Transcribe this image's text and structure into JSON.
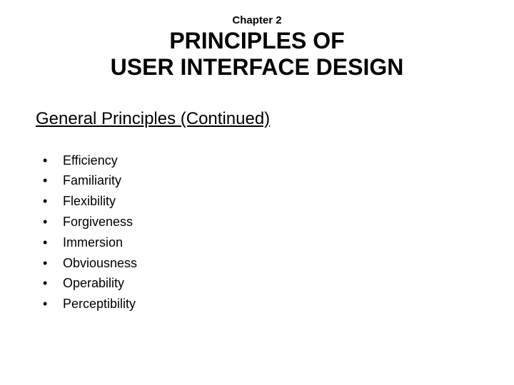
{
  "chapter_label": "Chapter 2",
  "title_line1": "PRINCIPLES OF",
  "title_line2": "USER INTERFACE DESIGN",
  "section_heading": "General Principles (Continued)",
  "bullets": [
    "Efficiency",
    "Familiarity",
    "Flexibility",
    "Forgiveness",
    "Immersion",
    "Obviousness",
    "Operability",
    "Perceptibility"
  ],
  "colors": {
    "background": "#ffffff",
    "text": "#000000"
  },
  "typography": {
    "chapter_fontsize": 15,
    "title_fontsize": 32,
    "heading_fontsize": 24,
    "bullet_fontsize": 18,
    "font_family": "Arial"
  }
}
